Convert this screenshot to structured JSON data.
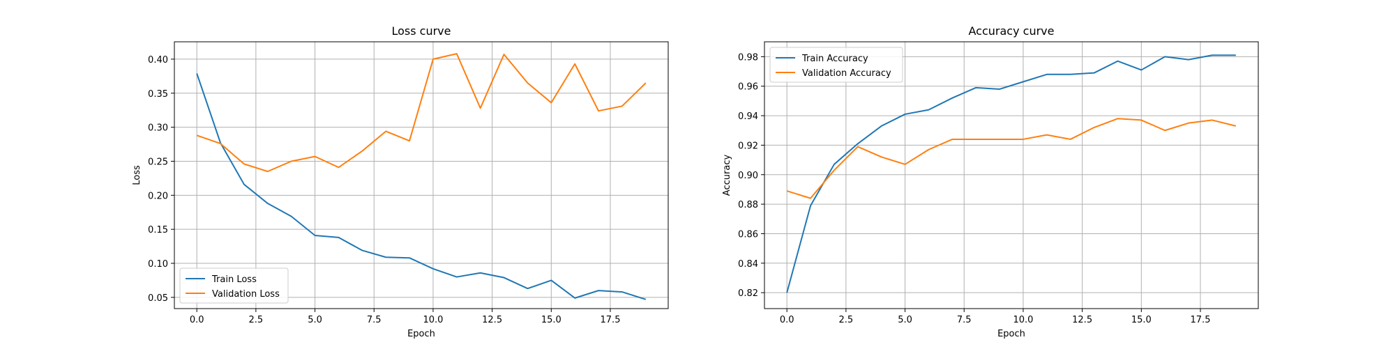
{
  "colors": {
    "train": "#1f77b4",
    "validation": "#ff7f0e",
    "grid": "#b0b0b0"
  },
  "chart_data": [
    {
      "type": "line",
      "title": "Loss curve",
      "xlabel": "Epoch",
      "ylabel": "Loss",
      "xlim": [
        -0.95,
        19.95
      ],
      "ylim": [
        0.0335,
        0.4255
      ],
      "xticks": [
        0.0,
        2.5,
        5.0,
        7.5,
        10.0,
        12.5,
        15.0,
        17.5
      ],
      "xtick_labels": [
        "0.0",
        "2.5",
        "5.0",
        "7.5",
        "10.0",
        "12.5",
        "15.0",
        "17.5"
      ],
      "yticks": [
        0.05,
        0.1,
        0.15,
        0.2,
        0.25,
        0.3,
        0.35,
        0.4
      ],
      "ytick_labels": [
        "0.05",
        "0.10",
        "0.15",
        "0.20",
        "0.25",
        "0.30",
        "0.35",
        "0.40"
      ],
      "grid": true,
      "legend_position": "lower-left",
      "x": [
        0,
        1,
        2,
        3,
        4,
        5,
        6,
        7,
        8,
        9,
        10,
        11,
        12,
        13,
        14,
        15,
        16,
        17,
        18,
        19
      ],
      "series": [
        {
          "name": "Train Loss",
          "color_key": "train",
          "values": [
            0.379,
            0.277,
            0.216,
            0.188,
            0.169,
            0.141,
            0.138,
            0.119,
            0.109,
            0.108,
            0.092,
            0.08,
            0.086,
            0.079,
            0.063,
            0.075,
            0.049,
            0.06,
            0.058,
            0.047
          ]
        },
        {
          "name": "Validation Loss",
          "color_key": "validation",
          "values": [
            0.288,
            0.276,
            0.246,
            0.235,
            0.25,
            0.257,
            0.241,
            0.265,
            0.294,
            0.28,
            0.4,
            0.408,
            0.328,
            0.407,
            0.365,
            0.336,
            0.393,
            0.324,
            0.331,
            0.365
          ]
        }
      ]
    },
    {
      "type": "line",
      "title": "Accuracy curve",
      "xlabel": "Epoch",
      "ylabel": "Accuracy",
      "xlim": [
        -0.95,
        19.95
      ],
      "ylim": [
        0.8092,
        0.9901
      ],
      "xticks": [
        0.0,
        2.5,
        5.0,
        7.5,
        10.0,
        12.5,
        15.0,
        17.5
      ],
      "xtick_labels": [
        "0.0",
        "2.5",
        "5.0",
        "7.5",
        "10.0",
        "12.5",
        "15.0",
        "17.5"
      ],
      "yticks": [
        0.82,
        0.84,
        0.86,
        0.88,
        0.9,
        0.92,
        0.94,
        0.96,
        0.98
      ],
      "ytick_labels": [
        "0.82",
        "0.84",
        "0.86",
        "0.88",
        "0.90",
        "0.92",
        "0.94",
        "0.96",
        "0.98"
      ],
      "grid": true,
      "legend_position": "upper-left",
      "x": [
        0,
        1,
        2,
        3,
        4,
        5,
        6,
        7,
        8,
        9,
        10,
        11,
        12,
        13,
        14,
        15,
        16,
        17,
        18,
        19
      ],
      "series": [
        {
          "name": "Train Accuracy",
          "color_key": "train",
          "values": [
            0.82,
            0.879,
            0.907,
            0.921,
            0.933,
            0.941,
            0.944,
            0.952,
            0.959,
            0.958,
            0.963,
            0.968,
            0.968,
            0.969,
            0.977,
            0.971,
            0.98,
            0.978,
            0.981,
            0.981
          ]
        },
        {
          "name": "Validation Accuracy",
          "color_key": "validation",
          "values": [
            0.889,
            0.884,
            0.903,
            0.919,
            0.912,
            0.907,
            0.917,
            0.924,
            0.924,
            0.924,
            0.924,
            0.927,
            0.924,
            0.932,
            0.938,
            0.937,
            0.93,
            0.935,
            0.937,
            0.933
          ]
        }
      ]
    }
  ]
}
